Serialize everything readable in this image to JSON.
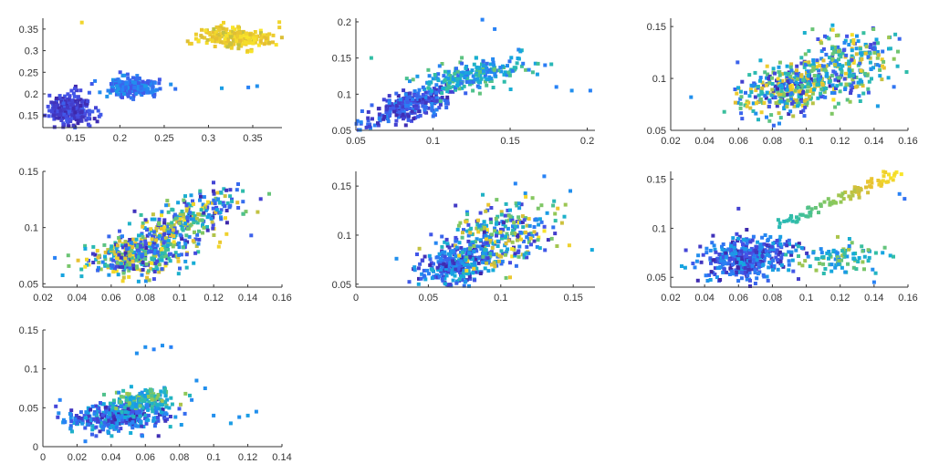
{
  "chart_data": [
    {
      "type": "scatter",
      "xticks": [
        "0.15",
        "0.2",
        "0.25",
        "0.3",
        "0.35"
      ],
      "yticks": [
        "0.15",
        "0.2",
        "0.25",
        "0.3",
        "0.35"
      ],
      "xlim": [
        0.113,
        0.383
      ],
      "ylim": [
        0.122,
        0.375
      ],
      "clusters": [
        {
          "cx": 0.145,
          "cy": 0.165,
          "sx": 0.012,
          "sy": 0.018,
          "n": 260,
          "t0": 0.0,
          "t1": 0.2
        },
        {
          "cx": 0.215,
          "cy": 0.215,
          "sx": 0.015,
          "sy": 0.01,
          "n": 220,
          "t0": 0.15,
          "t1": 0.4
        },
        {
          "cx": 0.33,
          "cy": 0.33,
          "sx": 0.02,
          "sy": 0.012,
          "n": 240,
          "t0": 0.82,
          "t1": 1.0
        }
      ],
      "outliers": [
        [
          0.157,
          0.365,
          0.95
        ],
        [
          0.345,
          0.215,
          0.3
        ],
        [
          0.355,
          0.218,
          0.35
        ],
        [
          0.315,
          0.213,
          0.4
        ],
        [
          0.38,
          0.366,
          0.95
        ]
      ]
    },
    {
      "type": "scatter",
      "xticks": [
        "0.05",
        "0.1",
        "0.15",
        "0.2"
      ],
      "yticks": [
        "0.05",
        "0.1",
        "0.15",
        "0.2"
      ],
      "xlim": [
        0.05,
        0.205
      ],
      "ylim": [
        0.05,
        0.205
      ],
      "clusters": [
        {
          "cx": 0.085,
          "cy": 0.085,
          "sx": 0.015,
          "sy": 0.014,
          "n": 300,
          "t0": 0.0,
          "t1": 0.35,
          "rho": 0.7
        },
        {
          "cx": 0.125,
          "cy": 0.125,
          "sx": 0.018,
          "sy": 0.012,
          "n": 220,
          "t0": 0.2,
          "t1": 0.7,
          "rho": 0.5
        }
      ],
      "outliers": [
        [
          0.132,
          0.203,
          0.3
        ],
        [
          0.14,
          0.19,
          0.3
        ],
        [
          0.18,
          0.11,
          0.3
        ],
        [
          0.19,
          0.105,
          0.35
        ],
        [
          0.202,
          0.105,
          0.3
        ],
        [
          0.06,
          0.15,
          0.6
        ]
      ]
    },
    {
      "type": "scatter",
      "xticks": [
        "0.02",
        "0.04",
        "0.06",
        "0.08",
        "0.1",
        "0.12",
        "0.14",
        "0.16"
      ],
      "yticks": [
        "0.05",
        "0.1",
        "0.15"
      ],
      "xlim": [
        0.02,
        0.16
      ],
      "ylim": [
        0.05,
        0.158
      ],
      "clusters": [
        {
          "cx": 0.09,
          "cy": 0.09,
          "sx": 0.015,
          "sy": 0.012,
          "n": 380,
          "t0": 0.0,
          "t1": 1.0,
          "rho": 0.3
        },
        {
          "cx": 0.125,
          "cy": 0.115,
          "sx": 0.015,
          "sy": 0.018,
          "n": 260,
          "t0": 0.1,
          "t1": 1.0,
          "rho": 0.2
        }
      ],
      "outliers": [
        [
          0.032,
          0.082,
          0.35
        ]
      ]
    },
    {
      "type": "scatter",
      "xticks": [
        "0.02",
        "0.04",
        "0.06",
        "0.08",
        "0.1",
        "0.12",
        "0.14",
        "0.16"
      ],
      "yticks": [
        "0.05",
        "0.1",
        "0.15"
      ],
      "xlim": [
        0.02,
        0.16
      ],
      "ylim": [
        0.047,
        0.15
      ],
      "clusters": [
        {
          "cx": 0.075,
          "cy": 0.075,
          "sx": 0.014,
          "sy": 0.01,
          "n": 380,
          "t0": 0.0,
          "t1": 1.0,
          "rho": 0.3
        },
        {
          "cx": 0.105,
          "cy": 0.105,
          "sx": 0.016,
          "sy": 0.014,
          "n": 280,
          "t0": 0.0,
          "t1": 1.0,
          "rho": 0.6
        }
      ],
      "outliers": [
        [
          0.027,
          0.073,
          0.3
        ],
        [
          0.123,
          0.083,
          0.95
        ],
        [
          0.142,
          0.093,
          0.2
        ]
      ]
    },
    {
      "type": "scatter",
      "xticks": [
        "0",
        "0.05",
        "0.1",
        "0.15"
      ],
      "yticks": [
        "0.05",
        "0.1",
        "0.15"
      ],
      "xlim": [
        0.0,
        0.165
      ],
      "ylim": [
        0.047,
        0.165
      ],
      "clusters": [
        {
          "cx": 0.07,
          "cy": 0.07,
          "sx": 0.012,
          "sy": 0.011,
          "n": 340,
          "t0": 0.0,
          "t1": 0.5,
          "rho": 0.3
        },
        {
          "cx": 0.1,
          "cy": 0.1,
          "sx": 0.018,
          "sy": 0.016,
          "n": 300,
          "t0": 0.0,
          "t1": 1.0,
          "rho": 0.3
        }
      ],
      "outliers": [
        [
          0.028,
          0.076,
          0.35
        ],
        [
          0.13,
          0.16,
          0.3
        ],
        [
          0.148,
          0.145,
          0.35
        ],
        [
          0.163,
          0.085,
          0.45
        ]
      ]
    },
    {
      "type": "scatter",
      "xticks": [
        "0.02",
        "0.04",
        "0.06",
        "0.08",
        "0.1",
        "0.12",
        "0.14",
        "0.16"
      ],
      "yticks": [
        "0.05",
        "0.1",
        "0.15"
      ],
      "xlim": [
        0.02,
        0.16
      ],
      "ylim": [
        0.04,
        0.158
      ],
      "clusters": [
        {
          "cx": 0.065,
          "cy": 0.07,
          "sx": 0.013,
          "sy": 0.011,
          "n": 420,
          "t0": 0.0,
          "t1": 0.45,
          "rho": 0.2
        },
        {
          "cx": 0.12,
          "cy": 0.07,
          "sx": 0.012,
          "sy": 0.009,
          "n": 100,
          "t0": 0.3,
          "t1": 0.8,
          "rho": 0.0
        }
      ],
      "trail": {
        "x0": 0.085,
        "y0": 0.105,
        "x1": 0.155,
        "y1": 0.157,
        "n": 90,
        "t0": 0.55,
        "t1": 1.0
      },
      "outliers": [
        [
          0.06,
          0.12,
          0.1
        ],
        [
          0.155,
          0.135,
          0.3
        ],
        [
          0.158,
          0.13,
          0.25
        ],
        [
          0.14,
          0.045,
          0.3
        ]
      ]
    },
    {
      "type": "scatter",
      "xticks": [
        "0",
        "0.02",
        "0.04",
        "0.06",
        "0.08",
        "0.1",
        "0.12",
        "0.14"
      ],
      "yticks": [
        "0",
        "0.05",
        "0.1",
        "0.15"
      ],
      "xlim": [
        0.0,
        0.14
      ],
      "ylim": [
        0.0,
        0.15
      ],
      "clusters": [
        {
          "cx": 0.045,
          "cy": 0.04,
          "sx": 0.015,
          "sy": 0.01,
          "n": 420,
          "t0": 0.0,
          "t1": 0.55,
          "rho": 0.3
        },
        {
          "cx": 0.06,
          "cy": 0.06,
          "sx": 0.008,
          "sy": 0.008,
          "n": 120,
          "t0": 0.3,
          "t1": 0.8,
          "rho": 0.0
        }
      ],
      "outliers": [
        [
          0.055,
          0.12,
          0.35
        ],
        [
          0.06,
          0.128,
          0.35
        ],
        [
          0.065,
          0.125,
          0.3
        ],
        [
          0.07,
          0.13,
          0.35
        ],
        [
          0.075,
          0.128,
          0.3
        ],
        [
          0.09,
          0.085,
          0.35
        ],
        [
          0.095,
          0.075,
          0.35
        ],
        [
          0.1,
          0.04,
          0.35
        ],
        [
          0.11,
          0.03,
          0.4
        ],
        [
          0.115,
          0.038,
          0.35
        ],
        [
          0.12,
          0.04,
          0.4
        ],
        [
          0.125,
          0.045,
          0.35
        ],
        [
          0.01,
          0.06,
          0.3
        ]
      ]
    }
  ]
}
